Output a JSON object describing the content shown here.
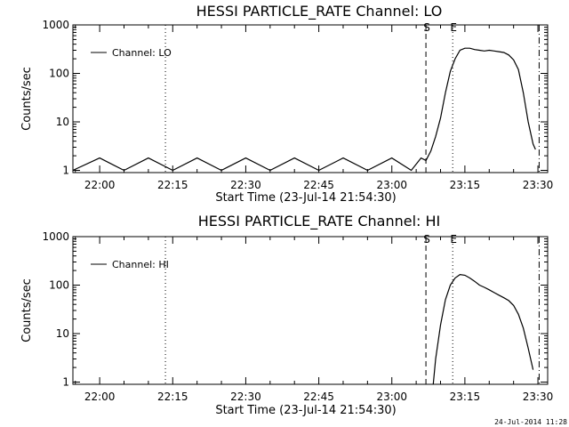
{
  "footer": {
    "timestamp": "24-Jul-2014 11:28"
  },
  "chart_data": [
    {
      "type": "line",
      "title": "HESSI PARTICLE_RATE Channel: LO",
      "xlabel": "Start Time (23-Jul-14 21:54:30)",
      "ylabel": "Counts/sec",
      "y_scale": "log",
      "ylim": [
        0.9,
        1000
      ],
      "xlim": [
        "21:54:30",
        "23:32:00"
      ],
      "x_ticks": [
        "22:00",
        "22:15",
        "22:30",
        "22:45",
        "23:00",
        "23:15",
        "23:30"
      ],
      "y_ticks": [
        "1",
        "10",
        "100",
        "1000"
      ],
      "legend": {
        "position": "top-left",
        "entries": [
          "Channel: LO"
        ]
      },
      "markers": [
        {
          "label": "",
          "x": "22:13:30",
          "style": "dotted"
        },
        {
          "label": "S",
          "x": "23:07:00",
          "style": "dashed"
        },
        {
          "label": "E",
          "x": "23:12:30",
          "style": "dotted"
        },
        {
          "label": "",
          "x": "23:30:15",
          "style": "dash-dot"
        }
      ],
      "series": [
        {
          "name": "Channel: LO",
          "x": [
            "21:54:30",
            "22:00",
            "22:05",
            "22:10",
            "22:15",
            "22:20",
            "22:25",
            "22:30",
            "22:35",
            "22:40",
            "22:45",
            "22:50",
            "22:55",
            "23:00",
            "23:04",
            "23:06",
            "23:07",
            "23:08",
            "23:09",
            "23:10",
            "23:11",
            "23:12",
            "23:13",
            "23:14",
            "23:15",
            "23:16",
            "23:17",
            "23:18",
            "23:19",
            "23:20",
            "23:21",
            "23:22",
            "23:23",
            "23:24",
            "23:25",
            "23:26",
            "23:27",
            "23:28",
            "23:29",
            "23:29:30"
          ],
          "values": [
            1,
            1.8,
            1,
            1.8,
            1,
            1.8,
            1,
            1.8,
            1,
            1.8,
            1,
            1.8,
            1,
            1.8,
            1,
            1.8,
            1.6,
            2.5,
            5,
            12,
            40,
            110,
            200,
            300,
            330,
            330,
            310,
            300,
            290,
            300,
            290,
            280,
            270,
            240,
            190,
            120,
            40,
            10,
            3.5,
            2.7
          ]
        }
      ]
    },
    {
      "type": "line",
      "title": "HESSI PARTICLE_RATE Channel: HI",
      "xlabel": "Start Time (23-Jul-14 21:54:30)",
      "ylabel": "Counts/sec",
      "y_scale": "log",
      "ylim": [
        0.9,
        1000
      ],
      "xlim": [
        "21:54:30",
        "23:32:00"
      ],
      "x_ticks": [
        "22:00",
        "22:15",
        "22:30",
        "22:45",
        "23:00",
        "23:15",
        "23:30"
      ],
      "y_ticks": [
        "1",
        "10",
        "100",
        "1000"
      ],
      "legend": {
        "position": "top-left",
        "entries": [
          "Channel: HI"
        ]
      },
      "markers": [
        {
          "label": "",
          "x": "22:13:30",
          "style": "dotted"
        },
        {
          "label": "S",
          "x": "23:07:00",
          "style": "dashed"
        },
        {
          "label": "E",
          "x": "23:12:30",
          "style": "dotted"
        },
        {
          "label": "",
          "x": "23:30:15",
          "style": "dash-dot"
        }
      ],
      "series": [
        {
          "name": "Channel: HI",
          "x": [
            "23:08:30",
            "23:09",
            "23:10",
            "23:11",
            "23:12",
            "23:13",
            "23:14",
            "23:15",
            "23:16",
            "23:17",
            "23:18",
            "23:19",
            "23:20",
            "23:21",
            "23:22",
            "23:23",
            "23:24",
            "23:25",
            "23:26",
            "23:27",
            "23:28",
            "23:29"
          ],
          "values": [
            0.9,
            3,
            15,
            50,
            100,
            140,
            165,
            160,
            140,
            120,
            100,
            90,
            80,
            70,
            62,
            55,
            48,
            38,
            25,
            13,
            5,
            1.8
          ]
        }
      ]
    }
  ]
}
